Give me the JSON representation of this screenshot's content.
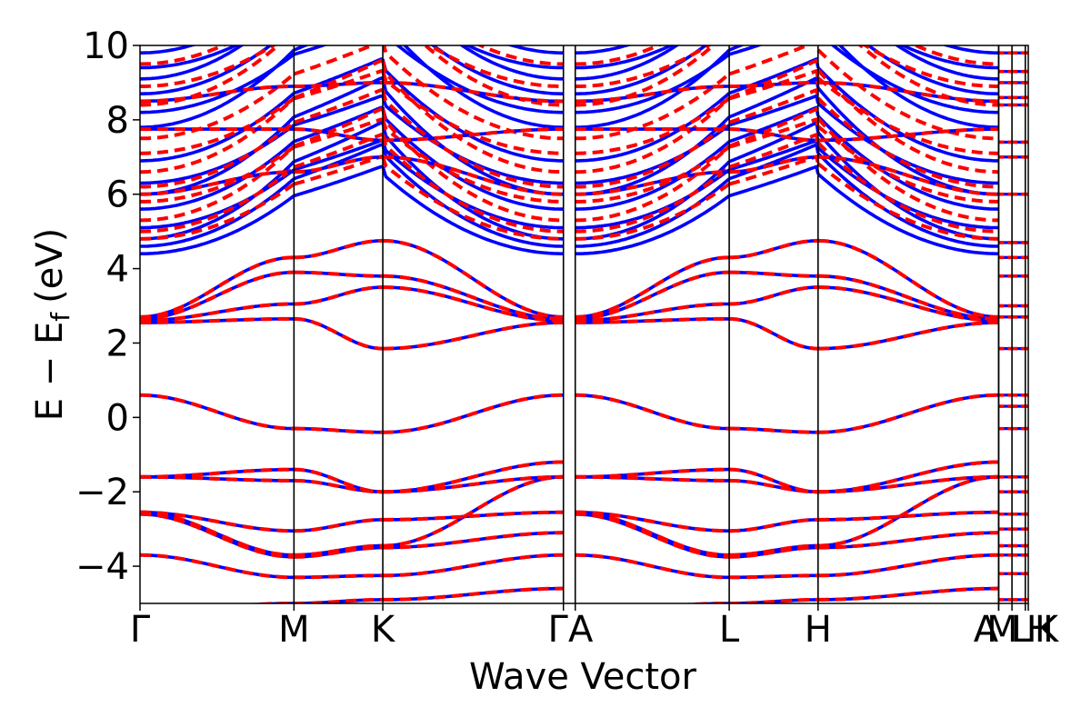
{
  "chart_data": {
    "type": "line",
    "title": "",
    "xlabel": "Wave Vector",
    "ylabel": "E − E",
    "ylabel_sub": "f",
    "ylabel_unit": "(eV)",
    "ylim": [
      -5,
      10
    ],
    "yticks": [
      {
        "value": 10,
        "label": "10"
      },
      {
        "value": 8,
        "label": "8"
      },
      {
        "value": 6,
        "label": "6"
      },
      {
        "value": 4,
        "label": "4"
      },
      {
        "value": 2,
        "label": "2"
      },
      {
        "value": 0,
        "label": "0"
      },
      {
        "value": -2,
        "label": "−2"
      },
      {
        "value": -4,
        "label": "−4"
      }
    ],
    "xlim": [
      0,
      6
    ],
    "kpoints": [
      {
        "x": 0.0,
        "label": "Γ"
      },
      {
        "x": 1.04,
        "label": "M"
      },
      {
        "x": 1.64,
        "label": "K"
      },
      {
        "x": 2.86,
        "label": "Γ"
      },
      {
        "x": 2.94,
        "label": "A"
      },
      {
        "x": 3.98,
        "label": "L"
      },
      {
        "x": 4.58,
        "label": "H"
      },
      {
        "x": 5.8,
        "label": "A"
      },
      {
        "x": 5.8,
        "label": "M"
      },
      {
        "x": 5.89,
        "label": "L"
      },
      {
        "x": 5.98,
        "label": "H"
      },
      {
        "x": 6.0,
        "label": "K"
      }
    ],
    "kpoint_label_row": "Γ M K ΓA L H A|M|L|HK",
    "grid": false,
    "colors": {
      "series_a": "#0000ff",
      "series_b": "#ff0000",
      "kline": "#000000"
    },
    "series": [
      {
        "style": "solid",
        "color": "blue"
      },
      {
        "style": "dashed",
        "color": "red"
      }
    ],
    "conduction_band_edges_at_gamma_blue": [
      4.4,
      4.6,
      4.8,
      5.1,
      5.6,
      6.0,
      6.3,
      6.9,
      7.8,
      8.2,
      8.7,
      9.1,
      9.4,
      9.8
    ],
    "conduction_band_edges_at_gamma_red": [
      4.8,
      5.0,
      5.3,
      5.8,
      6.2,
      6.6,
      7.1,
      7.5,
      8.4,
      8.9,
      9.5
    ],
    "valence_band_top": 0.6,
    "valence_band_min_near_M_K": -0.5
  }
}
